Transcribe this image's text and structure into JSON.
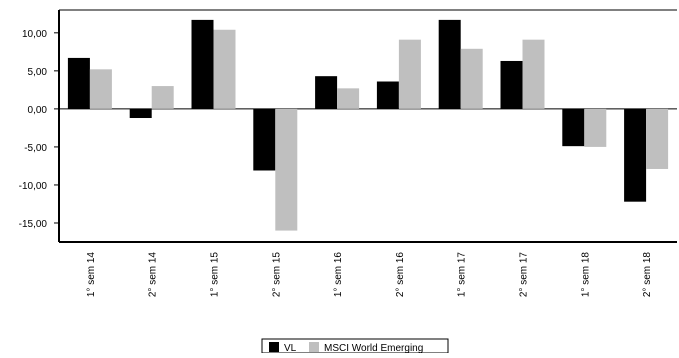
{
  "chart_data": {
    "type": "bar",
    "categories": [
      "1° sem 14",
      "2° sem 14",
      "1° sem 15",
      "2° sem 15",
      "1° sem 16",
      "2° sem 16",
      "1° sem 17",
      "2° sem 17",
      "1° sem 18",
      "2° sem 18"
    ],
    "series": [
      {
        "name": "VL",
        "color": "#000000",
        "values": [
          6.7,
          -1.2,
          11.7,
          -8.1,
          4.3,
          3.6,
          11.7,
          6.3,
          -4.9,
          -12.2
        ]
      },
      {
        "name": "MSCI World Emerging",
        "color": "#bfbfbf",
        "values": [
          5.2,
          3.0,
          10.4,
          -16.0,
          2.7,
          9.1,
          7.9,
          9.1,
          -5.0,
          -7.9
        ]
      }
    ],
    "yticks": [
      "10,00",
      "5,00",
      "0,00",
      "-5,00",
      "-10,00",
      "-15,00"
    ],
    "ylim": [
      -17.5,
      13.0
    ],
    "grid": false,
    "legend_position": "bottom-center"
  }
}
